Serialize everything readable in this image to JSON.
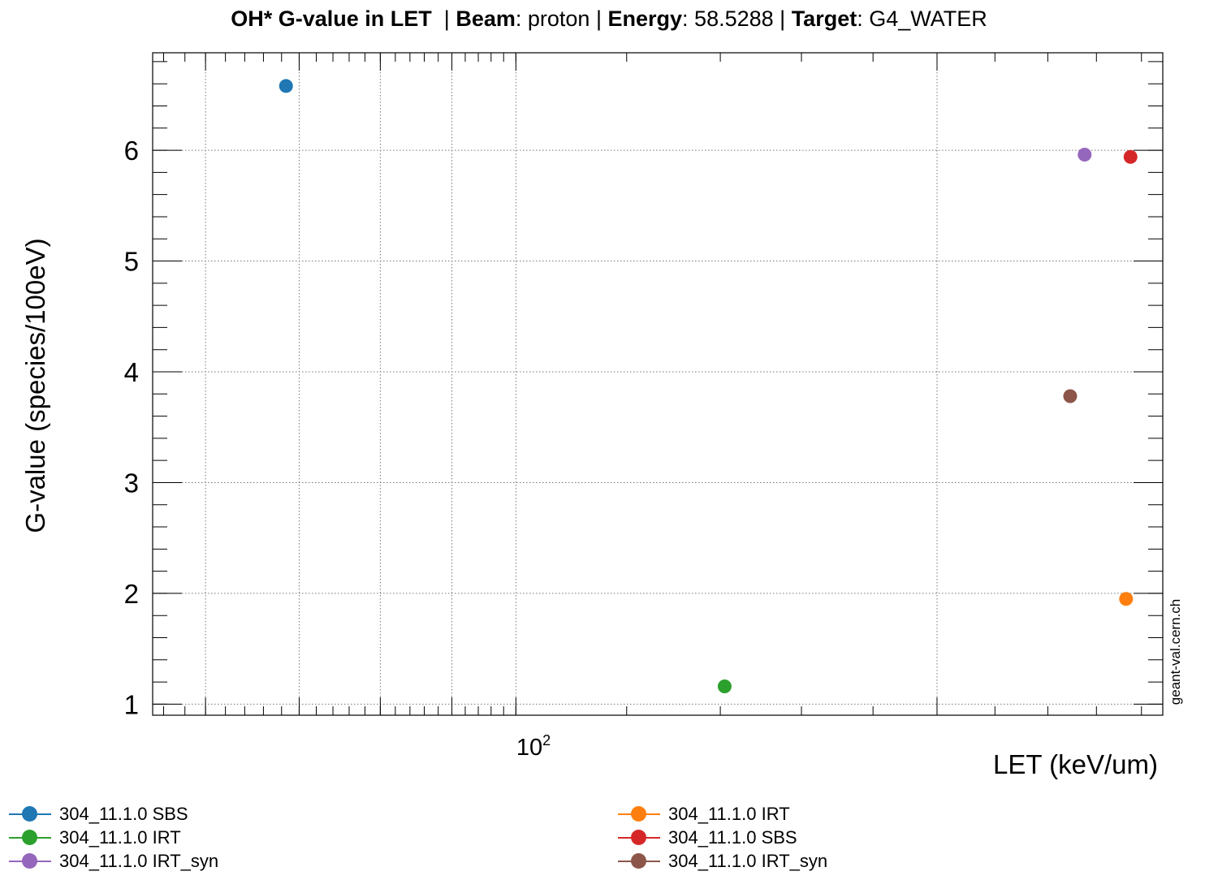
{
  "title": {
    "main": "OH* G-value in LET",
    "beam_label": "Beam",
    "beam_value": "proton",
    "energy_label": "Energy",
    "energy_value": "58.5288",
    "target_label": "Target",
    "target_value": "G4_WATER"
  },
  "watermark": "geant-val.cern.ch",
  "chart_data": {
    "type": "scatter",
    "xlabel": "LET (keV/um)",
    "ylabel": "G-value (species/100eV)",
    "x_scale": "log",
    "xlim": [
      55,
      290
    ],
    "ylim": [
      0.9,
      6.88
    ],
    "x_tick_label_base": "10",
    "x_tick_label_exp": "2",
    "y_ticks": [
      1,
      2,
      3,
      4,
      5,
      6
    ],
    "grid": true,
    "legend_position": "bottom",
    "series": [
      {
        "name": "304_11.1.0 SBS",
        "color": "#1f77b4",
        "points": [
          {
            "x": 68.5,
            "y": 6.58
          }
        ]
      },
      {
        "name": "304_11.1.0 IRT",
        "color": "#ff7f0e",
        "points": [
          {
            "x": 273,
            "y": 1.95
          }
        ]
      },
      {
        "name": "304_11.1.0 IRT",
        "color": "#2ca02c",
        "points": [
          {
            "x": 141,
            "y": 1.16
          }
        ]
      },
      {
        "name": "304_11.1.0 SBS",
        "color": "#d62728",
        "points": [
          {
            "x": 275,
            "y": 5.94
          }
        ]
      },
      {
        "name": "304_11.1.0 IRT_syn",
        "color": "#9467bd",
        "points": [
          {
            "x": 255,
            "y": 5.96
          }
        ]
      },
      {
        "name": "304_11.1.0 IRT_syn",
        "color": "#8c564b",
        "points": [
          {
            "x": 249,
            "y": 3.78
          }
        ]
      }
    ]
  }
}
